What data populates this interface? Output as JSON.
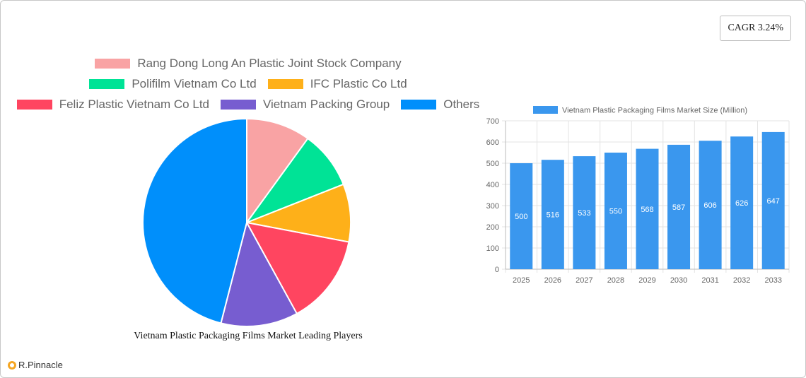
{
  "badge": {
    "cagr": "CAGR 3.24%"
  },
  "brand": {
    "name": "R.Pinnacle"
  },
  "chart_data": [
    {
      "type": "pie",
      "title": "Vietnam Plastic Packaging Films Market Leading Players",
      "legend_placement": "top",
      "labels": [
        "Rang Dong Long An Plastic Joint Stock Company",
        "Polifilm Vietnam Co  Ltd",
        "IFC Plastic Co  Ltd",
        "Feliz Plastic Vietnam Co  Ltd",
        "Vietnam Packing Group",
        "Others"
      ],
      "values": [
        10,
        9,
        9,
        14,
        12,
        46
      ],
      "colors": [
        "#f9a3a4",
        "#00e396",
        "#feb019",
        "#ff4560",
        "#775dd0",
        "#008ffb"
      ]
    },
    {
      "type": "bar",
      "title": "",
      "series": [
        {
          "name": "Vietnam Plastic Packaging Films Market Size (Million)",
          "values": [
            500,
            516,
            533,
            550,
            568,
            587,
            606,
            626,
            647
          ],
          "color": "#3a97ee"
        }
      ],
      "categories": [
        "2025",
        "2026",
        "2027",
        "2028",
        "2029",
        "2030",
        "2031",
        "2032",
        "2033"
      ],
      "ylim": [
        0,
        700
      ],
      "yticks": [
        0,
        100,
        200,
        300,
        400,
        500,
        600,
        700
      ],
      "grid": true,
      "legend_placement": "top",
      "data_labels": true
    }
  ]
}
